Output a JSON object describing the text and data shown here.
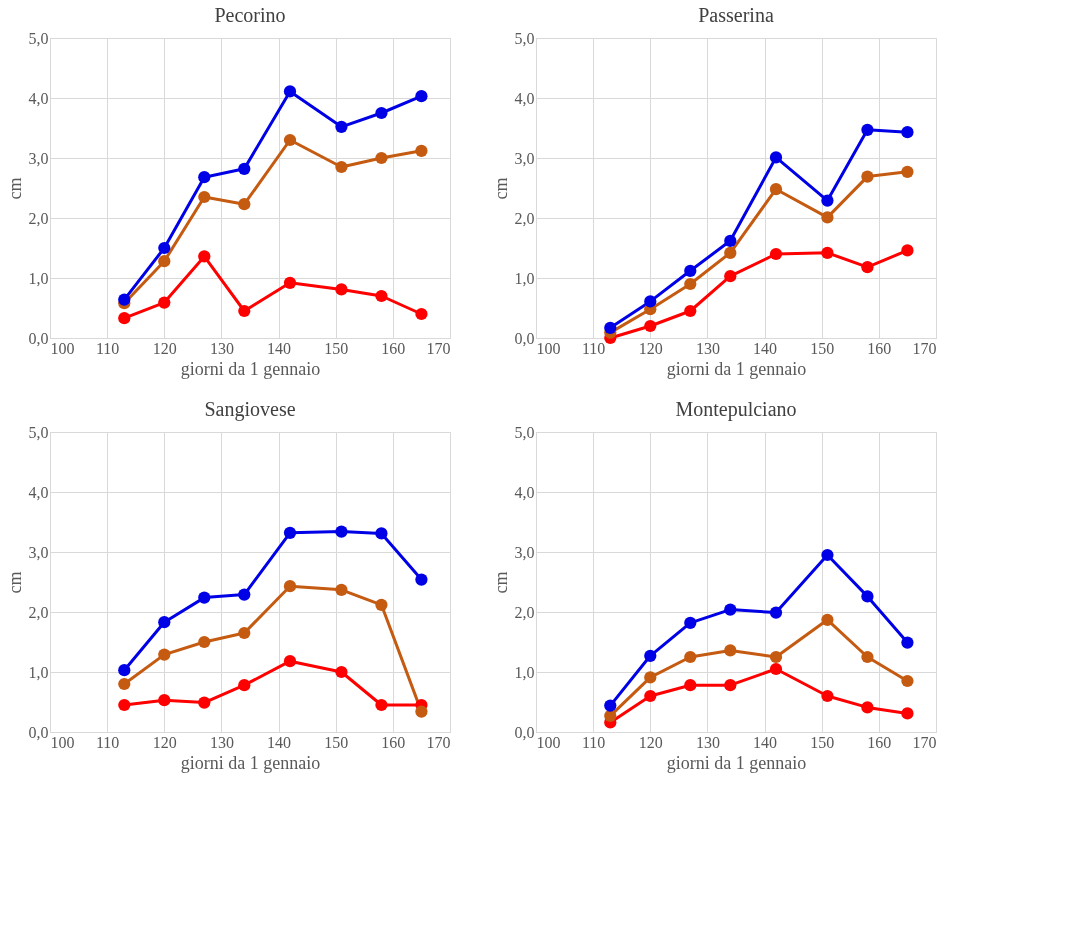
{
  "chart_data": [
    {
      "type": "line",
      "title": "Pecorino",
      "xlabel": "giorni da 1 gennaio",
      "ylabel": "cm",
      "x": [
        113,
        120,
        127,
        134,
        142,
        151,
        158,
        165
      ],
      "series": [
        {
          "color": "#0000e6",
          "values": [
            0.64,
            1.5,
            2.68,
            2.82,
            4.11,
            3.52,
            3.75,
            4.03
          ]
        },
        {
          "color": "#c55a11",
          "values": [
            0.58,
            1.28,
            2.35,
            2.23,
            3.3,
            2.85,
            3.0,
            3.12
          ]
        },
        {
          "color": "#ff0000",
          "values": [
            0.33,
            0.59,
            1.36,
            0.45,
            0.92,
            0.81,
            0.7,
            0.4
          ]
        }
      ],
      "xlim": [
        100,
        170
      ],
      "xticks": [
        100,
        110,
        120,
        130,
        140,
        150,
        160,
        170
      ],
      "ylim": [
        0,
        5
      ],
      "yticks": [
        {
          "value": 0,
          "label": "0,0"
        },
        {
          "value": 1,
          "label": "1,0"
        },
        {
          "value": 2,
          "label": "2,0"
        },
        {
          "value": 3,
          "label": "3,0"
        },
        {
          "value": 4,
          "label": "4,0"
        },
        {
          "value": 5,
          "label": "5,0"
        }
      ],
      "grid": true,
      "legend": false,
      "marker": "circle",
      "line_style": "solid"
    },
    {
      "type": "line",
      "title": "Passerina",
      "xlabel": "giorni da 1 gennaio",
      "ylabel": "cm",
      "x": [
        113,
        120,
        127,
        134,
        142,
        151,
        158,
        165
      ],
      "series": [
        {
          "color": "#0000e6",
          "values": [
            0.17,
            0.61,
            1.12,
            1.62,
            3.01,
            2.29,
            3.47,
            3.43
          ]
        },
        {
          "color": "#c55a11",
          "values": [
            0.09,
            0.48,
            0.9,
            1.42,
            2.48,
            2.01,
            2.69,
            2.77
          ]
        },
        {
          "color": "#ff0000",
          "values": [
            0.0,
            0.2,
            0.45,
            1.03,
            1.4,
            1.42,
            1.18,
            1.46
          ]
        }
      ],
      "xlim": [
        100,
        170
      ],
      "xticks": [
        100,
        110,
        120,
        130,
        140,
        150,
        160,
        170
      ],
      "ylim": [
        0,
        5
      ],
      "yticks": [
        {
          "value": 0,
          "label": "0,0"
        },
        {
          "value": 1,
          "label": "1,0"
        },
        {
          "value": 2,
          "label": "2,0"
        },
        {
          "value": 3,
          "label": "3,0"
        },
        {
          "value": 4,
          "label": "4,0"
        },
        {
          "value": 5,
          "label": "5,0"
        }
      ],
      "grid": true,
      "legend": false,
      "marker": "circle",
      "line_style": "solid"
    },
    {
      "type": "line",
      "title": "Sangiovese",
      "xlabel": "giorni da 1 gennaio",
      "ylabel": "cm",
      "x": [
        113,
        120,
        127,
        134,
        142,
        151,
        158,
        165
      ],
      "series": [
        {
          "color": "#0000e6",
          "values": [
            1.03,
            1.83,
            2.24,
            2.29,
            3.32,
            3.34,
            3.31,
            2.54
          ]
        },
        {
          "color": "#c55a11",
          "values": [
            0.8,
            1.29,
            1.5,
            1.65,
            2.43,
            2.37,
            2.12,
            0.34
          ]
        },
        {
          "color": "#ff0000",
          "values": [
            0.45,
            0.53,
            0.49,
            0.78,
            1.18,
            1.0,
            0.45,
            0.45
          ]
        }
      ],
      "xlim": [
        100,
        170
      ],
      "xticks": [
        100,
        110,
        120,
        130,
        140,
        150,
        160,
        170
      ],
      "ylim": [
        0,
        5
      ],
      "yticks": [
        {
          "value": 0,
          "label": "0,0"
        },
        {
          "value": 1,
          "label": "1,0"
        },
        {
          "value": 2,
          "label": "2,0"
        },
        {
          "value": 3,
          "label": "3,0"
        },
        {
          "value": 4,
          "label": "4,0"
        },
        {
          "value": 5,
          "label": "5,0"
        }
      ],
      "grid": true,
      "legend": false,
      "marker": "circle",
      "line_style": "solid"
    },
    {
      "type": "line",
      "title": "Montepulciano",
      "xlabel": "giorni da 1 gennaio",
      "ylabel": "cm",
      "x": [
        113,
        120,
        127,
        134,
        142,
        151,
        158,
        165
      ],
      "series": [
        {
          "color": "#0000e6",
          "values": [
            0.44,
            1.27,
            1.82,
            2.04,
            1.99,
            2.95,
            2.26,
            1.49
          ]
        },
        {
          "color": "#c55a11",
          "values": [
            0.27,
            0.91,
            1.25,
            1.36,
            1.25,
            1.87,
            1.25,
            0.85
          ]
        },
        {
          "color": "#ff0000",
          "values": [
            0.16,
            0.6,
            0.78,
            0.78,
            1.05,
            0.6,
            0.41,
            0.31
          ]
        }
      ],
      "xlim": [
        100,
        170
      ],
      "xticks": [
        100,
        110,
        120,
        130,
        140,
        150,
        160,
        170
      ],
      "ylim": [
        0,
        5
      ],
      "yticks": [
        {
          "value": 0,
          "label": "0,0"
        },
        {
          "value": 1,
          "label": "1,0"
        },
        {
          "value": 2,
          "label": "2,0"
        },
        {
          "value": 3,
          "label": "3,0"
        },
        {
          "value": 4,
          "label": "4,0"
        },
        {
          "value": 5,
          "label": "5,0"
        }
      ],
      "grid": true,
      "legend": false,
      "marker": "circle",
      "line_style": "solid"
    }
  ]
}
